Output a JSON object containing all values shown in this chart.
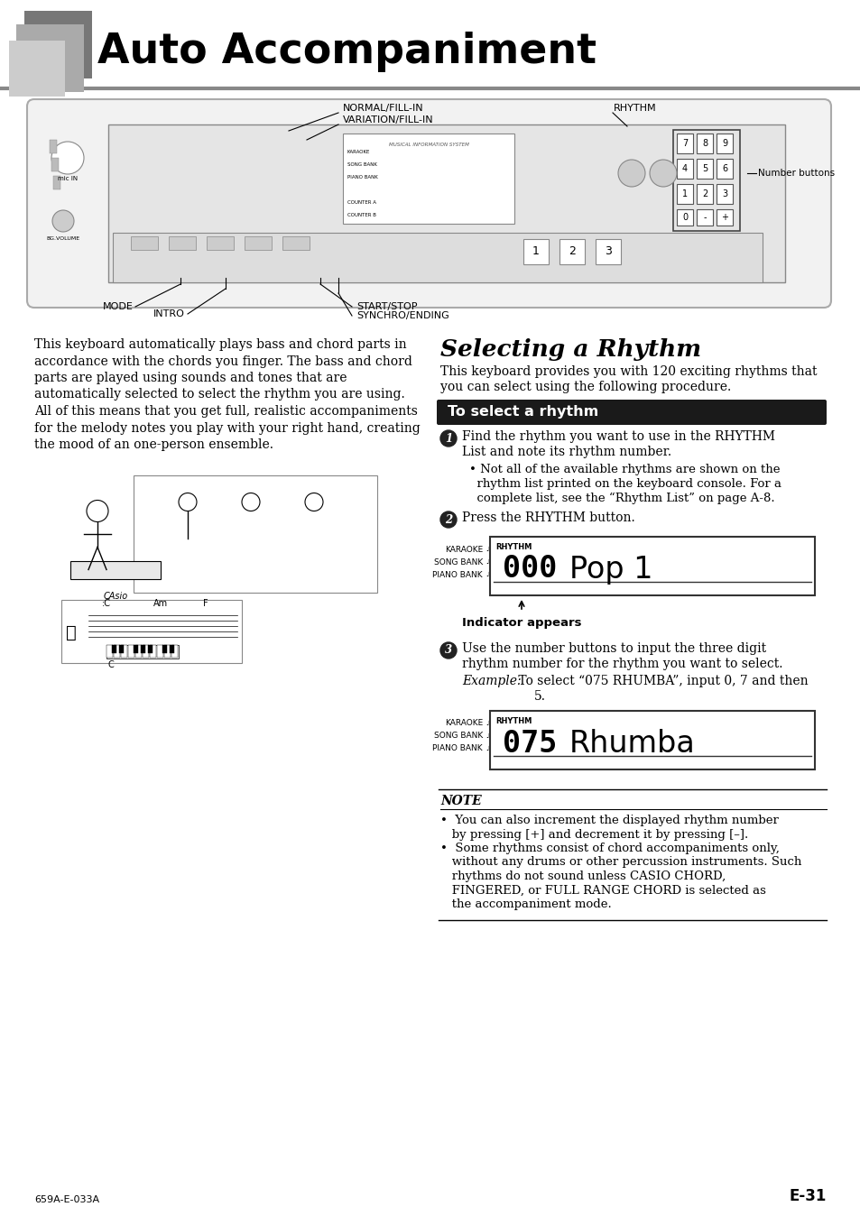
{
  "title": "Auto Accompaniment",
  "page_number": "E-31",
  "page_code": "659A-E-033A",
  "bg_color": "#ffffff",
  "section_title": "Selecting a Rhythm",
  "section_header_bg": "#1a1a1a",
  "section_header_text": "To select a rhythm",
  "section_header_fg": "#ffffff",
  "left_body_text": "This keyboard automatically plays bass and chord parts in accordance with the chords you finger. The bass and chord parts are played using sounds and tones that are automatically selected to select the rhythm you are using. All of this means that you get full, realistic accompaniments for the melody notes you play with your right hand, creating the mood of an one-person ensemble.",
  "right_intro_text": "This keyboard provides you with 120 exciting rhythms that you can select using the following procedure.",
  "step1_line1": "Find the rhythm you want to use in the RHYTHM",
  "step1_line2": "List and note its rhythm number.",
  "step1_bullet1": "• Not all of the available rhythms are shown on the",
  "step1_bullet2": "  rhythm list printed on the keyboard console. For a",
  "step1_bullet3": "  complete list, see the “Rhythm List” on page A-8.",
  "step2_line": "Press the RHYTHM button.",
  "display1_number": "000",
  "display1_text": "Pop 1",
  "indicator_text": "Indicator appears",
  "step3_line1": "Use the number buttons to input the three digit",
  "step3_line2": "rhythm number for the rhythm you want to select.",
  "step3_example_italic": "Example:",
  "step3_example_rest": " To select “075 RHUMBA”, input 0, 7 and then",
  "step3_example_cont": "5.",
  "display2_number": "075",
  "display2_text": "Rhumba",
  "note_header": "NOTE",
  "note_line1": "•  You can also increment the displayed rhythm number",
  "note_line2": "   by pressing [+] and decrement it by pressing [–].",
  "note_line3": "•  Some rhythms consist of chord accompaniments only,",
  "note_line4": "   without any drums or other percussion instruments. Such",
  "note_line5": "   rhythms do not sound unless CASIO CHORD,",
  "note_line6": "   FINGERED, or FULL RANGE CHORD is selected as",
  "note_line7": "   the accompaniment mode.",
  "kbd_label_normal": "NORMAL/FILL-IN",
  "kbd_label_variation": "VARIATION/FILL-IN",
  "kbd_label_rhythm": "RHYTHM",
  "kbd_label_number": "Number buttons",
  "kbd_label_mode": "MODE",
  "kbd_label_intro": "INTRO",
  "kbd_label_start": "START/STOP",
  "kbd_label_synchro": "SYNCHRO/ENDING",
  "display_label_karaoke": "KARAOKE",
  "display_label_song": "SONG BANK",
  "display_label_piano": "PIANO BANK",
  "display_label_rhythm": "RHYTHM"
}
